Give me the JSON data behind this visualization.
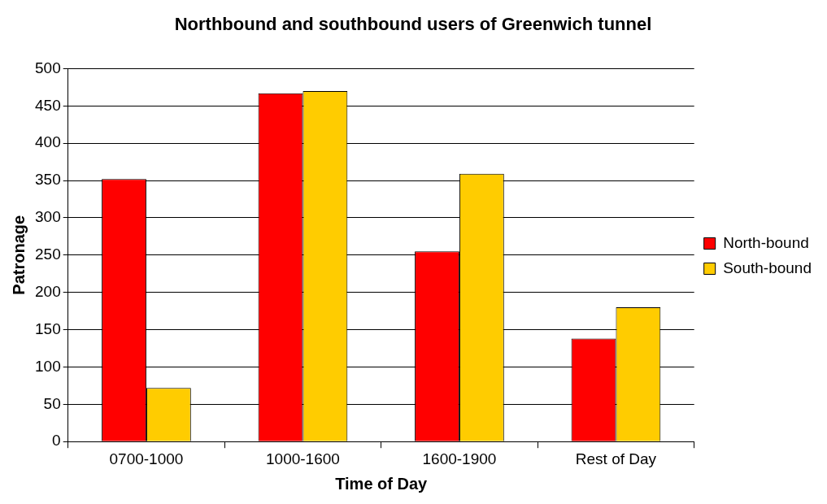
{
  "chart_data": {
    "type": "bar",
    "title": "Northbound and southbound users of Greenwich tunnel",
    "xlabel": "Time of Day",
    "ylabel": "Patronage",
    "categories": [
      "0700-1000",
      "1000-1600",
      "1600-1900",
      "Rest of Day"
    ],
    "series": [
      {
        "name": "North-bound",
        "color": "#ff0000",
        "values": [
          352,
          467,
          255,
          138
        ]
      },
      {
        "name": "South-bound",
        "color": "#ffcc00",
        "values": [
          72,
          470,
          359,
          180
        ]
      }
    ],
    "ylim": [
      0,
      500
    ],
    "yticks": [
      0,
      50,
      100,
      150,
      200,
      250,
      300,
      350,
      400,
      450,
      500
    ],
    "grid": "y",
    "legend": "right"
  }
}
